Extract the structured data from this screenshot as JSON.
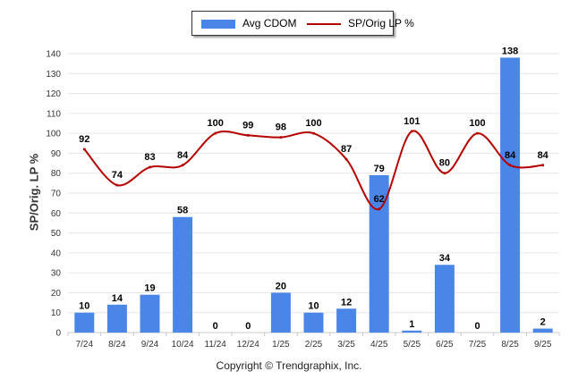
{
  "chart_data": {
    "type": "bar",
    "categories": [
      "7/24",
      "8/24",
      "9/24",
      "10/24",
      "11/24",
      "12/24",
      "1/25",
      "2/25",
      "3/25",
      "4/25",
      "5/25",
      "6/25",
      "7/25",
      "8/25",
      "9/25"
    ],
    "series": [
      {
        "name": "Avg CDOM",
        "type": "bar",
        "color": "#4a86e8",
        "values": [
          10,
          14,
          19,
          58,
          0,
          0,
          20,
          10,
          12,
          79,
          1,
          34,
          0,
          138,
          2
        ]
      },
      {
        "name": "SP/Orig LP %",
        "type": "line",
        "color": "#b40000",
        "values": [
          92,
          74,
          83,
          84,
          100,
          99,
          98,
          100,
          87,
          62,
          101,
          80,
          100,
          84,
          84
        ],
        "labels": [
          92,
          74,
          83,
          84,
          100,
          99,
          98,
          100,
          87,
          62,
          101,
          80,
          100,
          84,
          84
        ]
      }
    ],
    "title": "",
    "xlabel": "",
    "ylabel": "SP/Orig. LP %",
    "ylim": [
      0,
      140
    ],
    "yticks": [
      0,
      10,
      20,
      30,
      40,
      50,
      60,
      70,
      80,
      90,
      100,
      110,
      120,
      130,
      140
    ],
    "grid": true,
    "legend_position": "top-center"
  },
  "legend": {
    "bar_label": "Avg CDOM",
    "line_label": "SP/Orig LP %"
  },
  "footer": {
    "copyright": "Copyright © Trendgraphix, Inc."
  }
}
